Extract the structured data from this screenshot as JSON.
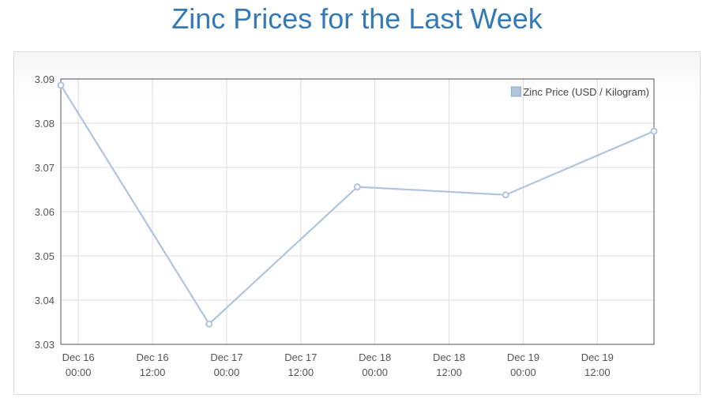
{
  "page": {
    "title": "Zinc Prices for the Last Week"
  },
  "chart_data": {
    "type": "line",
    "title": "Zinc Prices for the Last Week",
    "xlabel": "",
    "ylabel": "",
    "xlim": [
      "Dec 15 21:10",
      "Dec 19 21:10"
    ],
    "ylim": [
      3.03,
      3.09
    ],
    "y_ticks": [
      "3.03",
      "3.04",
      "3.05",
      "3.06",
      "3.07",
      "3.08",
      "3.09"
    ],
    "x_ticks": [
      {
        "date": "Dec 16",
        "time": "00:00"
      },
      {
        "date": "Dec 16",
        "time": "12:00"
      },
      {
        "date": "Dec 17",
        "time": "00:00"
      },
      {
        "date": "Dec 17",
        "time": "12:00"
      },
      {
        "date": "Dec 18",
        "time": "00:00"
      },
      {
        "date": "Dec 18",
        "time": "12:00"
      },
      {
        "date": "Dec 19",
        "time": "00:00"
      },
      {
        "date": "Dec 19",
        "time": "12:00"
      }
    ],
    "grid": true,
    "legend_position": "top-right",
    "series": [
      {
        "name": "Zinc Price (USD / Kilogram)",
        "color": "#b0c4de",
        "points": [
          {
            "x": "Dec 15 21:10",
            "y": 3.0886
          },
          {
            "x": "Dec 16 21:10",
            "y": 3.0346
          },
          {
            "x": "Dec 17 21:10",
            "y": 3.0656
          },
          {
            "x": "Dec 18 21:10",
            "y": 3.0638
          },
          {
            "x": "Dec 19 21:10",
            "y": 3.0782
          }
        ]
      }
    ]
  }
}
